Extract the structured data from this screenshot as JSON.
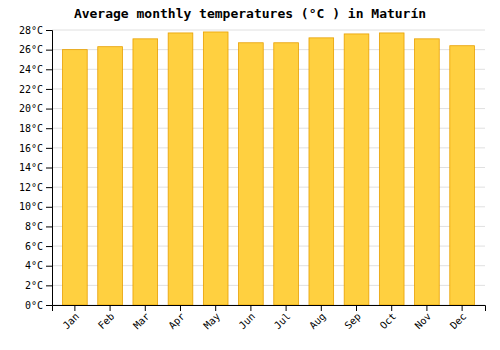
{
  "chart_data": {
    "type": "bar",
    "title": "Average monthly temperatures (°C ) in Maturín",
    "categories": [
      "Jan",
      "Feb",
      "Mar",
      "Apr",
      "May",
      "Jun",
      "Jul",
      "Aug",
      "Sep",
      "Oct",
      "Nov",
      "Dec"
    ],
    "values": [
      26.0,
      26.3,
      27.1,
      27.7,
      27.8,
      26.7,
      26.7,
      27.2,
      27.6,
      27.7,
      27.1,
      26.4
    ],
    "color": "#FFD040",
    "ylim": [
      0,
      28
    ],
    "yticks": [
      {
        "value": 0,
        "label": "0°C"
      },
      {
        "value": 2,
        "label": "2°C"
      },
      {
        "value": 4,
        "label": "4°C"
      },
      {
        "value": 6,
        "label": "6°C"
      },
      {
        "value": 8,
        "label": "8°C"
      },
      {
        "value": 10,
        "label": "10°C"
      },
      {
        "value": 12,
        "label": "12°C"
      },
      {
        "value": 14,
        "label": "14°C"
      },
      {
        "value": 16,
        "label": "16°C"
      },
      {
        "value": 18,
        "label": "18°C"
      },
      {
        "value": 20,
        "label": "20°C"
      },
      {
        "value": 22,
        "label": "22°C"
      },
      {
        "value": 24,
        "label": "24°C"
      },
      {
        "value": 26,
        "label": "26°C"
      },
      {
        "value": 28,
        "label": "28°C"
      }
    ],
    "grid": true
  }
}
